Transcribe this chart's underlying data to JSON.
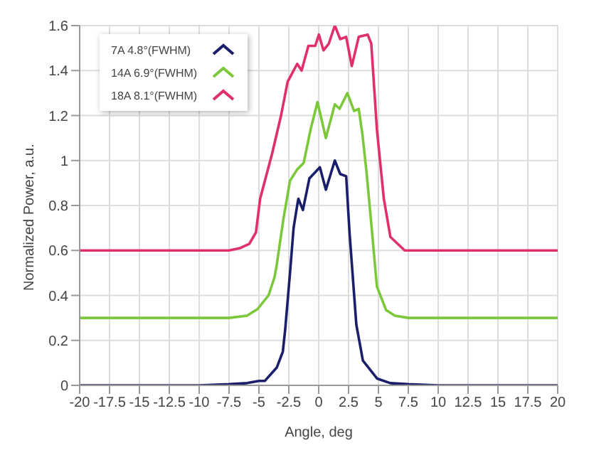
{
  "chart_data": {
    "type": "line",
    "xlabel": "Angle, deg",
    "ylabel": "Normalized Power, a.u.",
    "xlim": [
      -20,
      20
    ],
    "ylim": [
      0,
      1.6
    ],
    "xticks": [
      -20,
      -17.5,
      -15,
      -12.5,
      -10,
      -7.5,
      -5,
      -2.5,
      0,
      2.5,
      5,
      7.5,
      10,
      12.5,
      15,
      17.5,
      20
    ],
    "yticks": [
      0,
      0.2,
      0.4,
      0.6,
      0.8,
      1,
      1.2,
      1.4,
      1.6
    ],
    "grid": true,
    "legend": "top left",
    "marker": "none",
    "line_style": "solid",
    "series": [
      {
        "name": "7A 4.8°(FWHM)",
        "color": "#1b1f6b",
        "x": [
          -20,
          -10,
          -7.5,
          -6,
          -5,
          -4.5,
          -3.5,
          -3,
          -2.8,
          -2.4,
          -2.1,
          -1.8,
          -1.7,
          -1.32,
          -0.78,
          0.1,
          0.6,
          1.35,
          1.8,
          2.3,
          2.58,
          3.15,
          3.7,
          4.9,
          6,
          7.5,
          10,
          20
        ],
        "values": [
          0,
          0,
          0.005,
          0.01,
          0.02,
          0.02,
          0.08,
          0.15,
          0.25,
          0.5,
          0.7,
          0.8,
          0.83,
          0.78,
          0.92,
          0.97,
          0.87,
          1,
          0.94,
          0.93,
          0.68,
          0.27,
          0.11,
          0.03,
          0.01,
          0.005,
          0,
          0
        ]
      },
      {
        "name": "14A 6.9°(FWHM)",
        "color": "#7dc83a",
        "x": [
          -20,
          -10,
          -7.5,
          -6,
          -5.1,
          -4.2,
          -3.7,
          -3.5,
          -2.95,
          -2.4,
          -1.8,
          -1.25,
          -0.67,
          -0.1,
          0.6,
          1.35,
          1.75,
          2.4,
          2.96,
          3.35,
          3.65,
          4,
          4.4,
          4.87,
          5.64,
          6.37,
          7.5,
          10,
          20
        ],
        "values": [
          0.3,
          0.3,
          0.3,
          0.31,
          0.34,
          0.4,
          0.48,
          0.54,
          0.74,
          0.91,
          0.96,
          0.99,
          1.14,
          1.26,
          1.1,
          1.25,
          1.23,
          1.3,
          1.22,
          1.23,
          1.12,
          0.95,
          0.72,
          0.44,
          0.335,
          0.31,
          0.3,
          0.3,
          0.3
        ]
      },
      {
        "name": "18A 8.1°(FWHM)",
        "color": "#e0306c",
        "x": [
          -20,
          -10,
          -7.5,
          -6.6,
          -5.8,
          -5.25,
          -4.9,
          -3.9,
          -3.15,
          -2.6,
          -1.8,
          -1.43,
          -0.86,
          -0.29,
          0.02,
          0.4,
          0.85,
          1.35,
          1.8,
          2.3,
          2.77,
          3.35,
          4.1,
          4.4,
          4.87,
          5.45,
          6,
          7.2,
          8,
          10,
          20
        ],
        "values": [
          0.6,
          0.6,
          0.6,
          0.61,
          0.63,
          0.68,
          0.83,
          1.03,
          1.2,
          1.35,
          1.43,
          1.4,
          1.51,
          1.51,
          1.56,
          1.49,
          1.52,
          1.6,
          1.54,
          1.55,
          1.42,
          1.55,
          1.56,
          1.52,
          1.14,
          0.83,
          0.66,
          0.6,
          0.6,
          0.6,
          0.6
        ]
      }
    ]
  }
}
